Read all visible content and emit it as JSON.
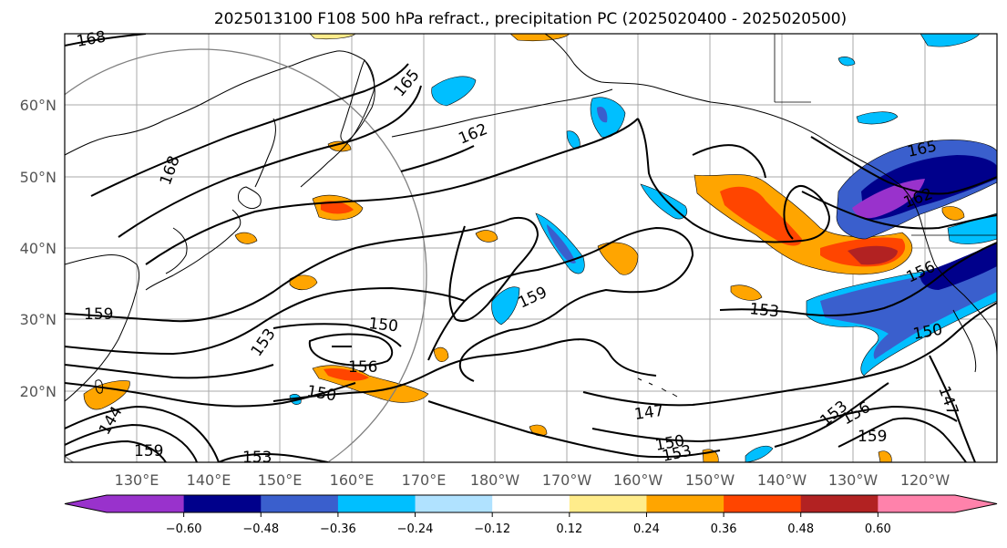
{
  "title": "2025013100 F108 500 hPa refract., precipitation PC (2025020400 - 2025020500)",
  "map": {
    "lon_labels": [
      "130°E",
      "140°E",
      "150°E",
      "160°E",
      "170°E",
      "180°W",
      "170°W",
      "160°W",
      "150°W",
      "140°W",
      "130°W",
      "120°W"
    ],
    "lat_labels": [
      "60°N",
      "50°N",
      "40°N",
      "30°N",
      "20°N"
    ],
    "contour_labels": [
      "168",
      "168",
      "165",
      "165",
      "162",
      "162",
      "159",
      "159",
      "159",
      "159",
      "156",
      "156",
      "156",
      "153",
      "153",
      "153",
      "153",
      "153",
      "150",
      "150",
      "150",
      "150",
      "147",
      "147",
      "144"
    ]
  },
  "colorbar": {
    "ticks": [
      "−0.60",
      "−0.48",
      "−0.36",
      "−0.24",
      "−0.12",
      "0.12",
      "0.24",
      "0.36",
      "0.48",
      "0.60"
    ],
    "colors": [
      "#9932cc",
      "#00008b",
      "#3a5fcd",
      "#00bfff",
      "#b0e2ff",
      "#ffffff",
      "#ffec8b",
      "#ffa500",
      "#ff4500",
      "#b22222",
      "#ff82ab"
    ]
  },
  "colors": {
    "grid": "#aaaaaa",
    "contour": "#000000",
    "coast": "#000000"
  }
}
